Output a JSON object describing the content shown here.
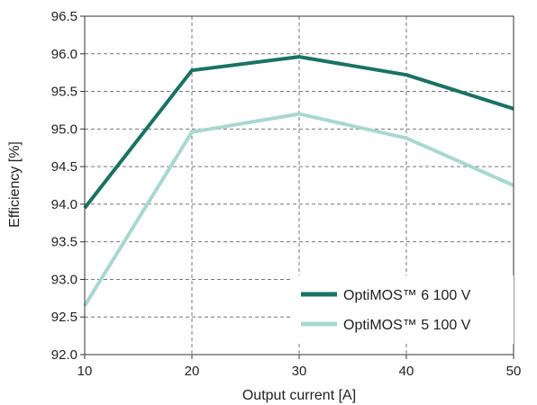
{
  "chart_data": {
    "type": "line",
    "xlabel": "Output current [A]",
    "ylabel": "Efficiency [%]",
    "xlim": [
      10,
      50
    ],
    "ylim": [
      92.0,
      96.5
    ],
    "xticks": [
      10,
      20,
      30,
      40,
      50
    ],
    "xtick_labels": [
      "10",
      "20",
      "30",
      "40",
      "50"
    ],
    "yticks": [
      92.0,
      92.5,
      93.0,
      93.5,
      94.0,
      94.5,
      95.0,
      95.5,
      96.0,
      96.5
    ],
    "ytick_labels": [
      "92.0",
      "92.5",
      "93.0",
      "93.5",
      "94.0",
      "94.5",
      "95.0",
      "95.5",
      "96.0",
      "96.5"
    ],
    "grid": true,
    "grid_style": "dashed",
    "legend_position": "bottom-right",
    "x": [
      10,
      20,
      30,
      40,
      50
    ],
    "series": [
      {
        "name": "OptiMOS™ 6 100 V",
        "color": "#1a7263",
        "values": [
          93.95,
          95.78,
          95.96,
          95.72,
          95.27
        ]
      },
      {
        "name": "OptiMOS™ 5 100 V",
        "color": "#a8d8d0",
        "values": [
          92.65,
          94.96,
          95.2,
          94.88,
          94.25
        ]
      }
    ]
  }
}
